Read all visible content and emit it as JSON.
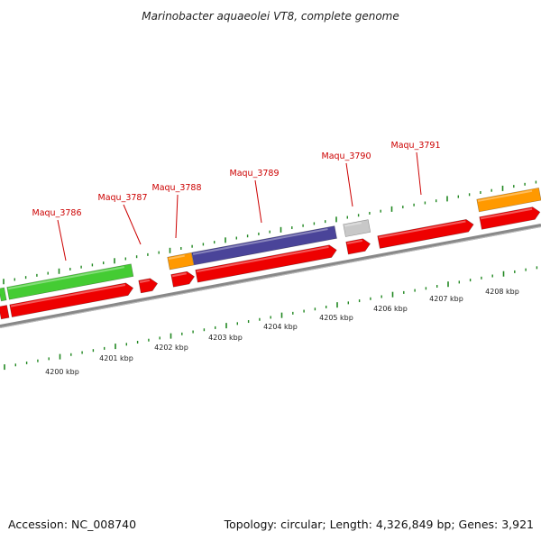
{
  "title": "Marinobacter aquaeolei VT8, complete genome",
  "accession_text": "Accession: NC_008740",
  "topology_text": "Topology: circular; Length: 4,326,849 bp; Genes: 3,921",
  "colors": {
    "cds_red": "#ee0000",
    "green": "#44cc33",
    "orange": "#ff9900",
    "purple": "#4a4499",
    "gray": "#c8c8c8",
    "backbone": "#888888",
    "label": "#cc0000",
    "tick": "#228822"
  },
  "gene_labels": [
    {
      "text": "Maqu_3786"
    },
    {
      "text": "Maqu_3787"
    },
    {
      "text": "Maqu_3788"
    },
    {
      "text": "Maqu_3789"
    },
    {
      "text": "Maqu_3790"
    },
    {
      "text": "Maqu_3791"
    }
  ],
  "kbp_labels": [
    "4200 kbp",
    "4201 kbp",
    "4202 kbp",
    "4203 kbp",
    "4204 kbp",
    "4205 kbp",
    "4206 kbp",
    "4207 kbp",
    "4208 kbp"
  ]
}
